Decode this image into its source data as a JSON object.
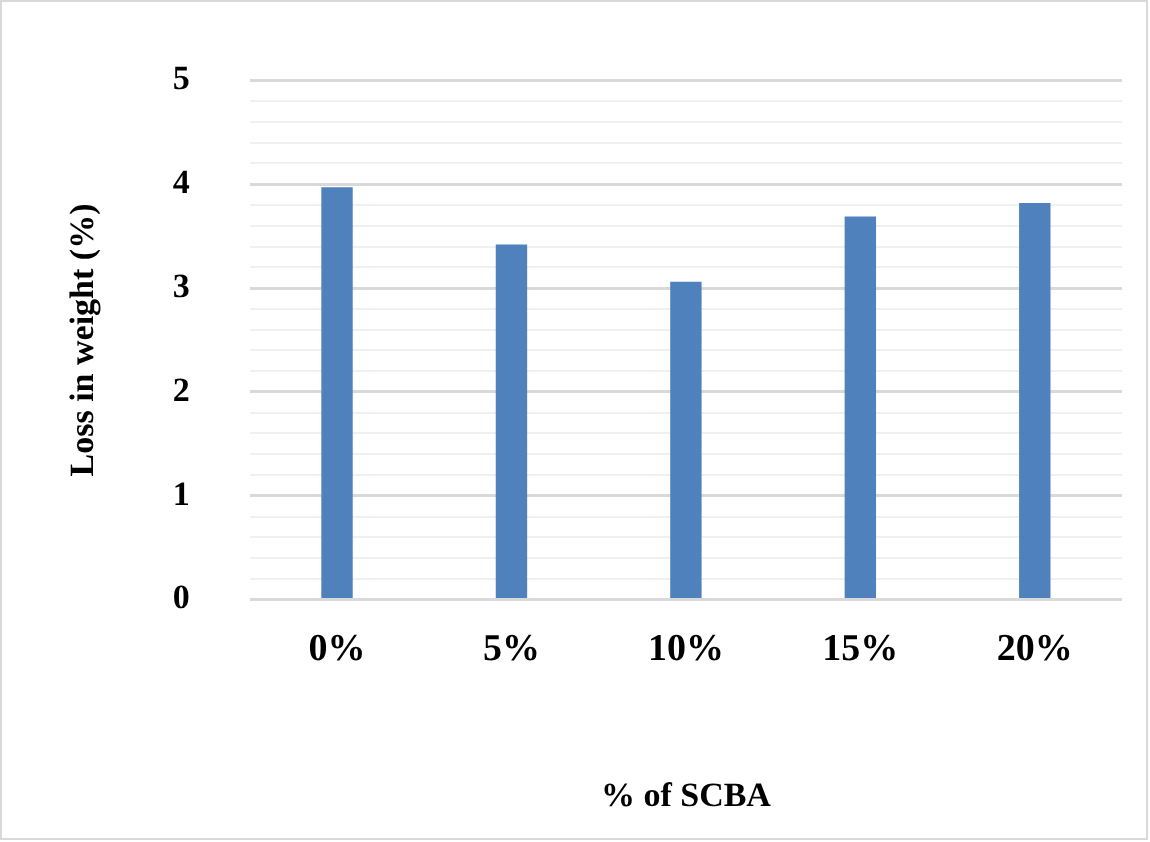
{
  "chart_data": {
    "type": "bar",
    "xlabel": "% of SCBA",
    "ylabel": "Loss in weight (%)",
    "categories": [
      "0%",
      "5%",
      "10%",
      "15%",
      "20%"
    ],
    "series": [
      {
        "color": "#4f81bd",
        "values": [
          3.97,
          3.42,
          3.06,
          3.69,
          3.82
        ]
      }
    ],
    "ylim": [
      0,
      5
    ],
    "yticks": [
      0,
      {
        "value": 0.2,
        "label": null
      },
      {
        "value": 0.4,
        "label": null
      },
      {
        "value": 0.6,
        "label": null
      },
      {
        "value": 0.8,
        "label": null
      },
      1,
      {
        "value": 1.2,
        "label": null
      },
      {
        "value": 1.4,
        "label": null
      },
      {
        "value": 1.6,
        "label": null
      },
      {
        "value": 1.8,
        "label": null
      },
      2,
      {
        "value": 2.2,
        "label": null
      },
      {
        "value": 2.4,
        "label": null
      },
      {
        "value": 2.6,
        "label": null
      },
      {
        "value": 2.8,
        "label": null
      },
      3,
      {
        "value": 3.2,
        "label": null
      },
      {
        "value": 3.4,
        "label": null
      },
      {
        "value": 3.6,
        "label": null
      },
      {
        "value": 3.8,
        "label": null
      },
      4,
      {
        "value": 4.2,
        "label": null
      },
      {
        "value": 4.4,
        "label": null
      },
      {
        "value": 4.6,
        "label": null
      },
      {
        "value": 4.8,
        "label": null
      },
      5
    ],
    "grid": "y",
    "legend": false
  }
}
